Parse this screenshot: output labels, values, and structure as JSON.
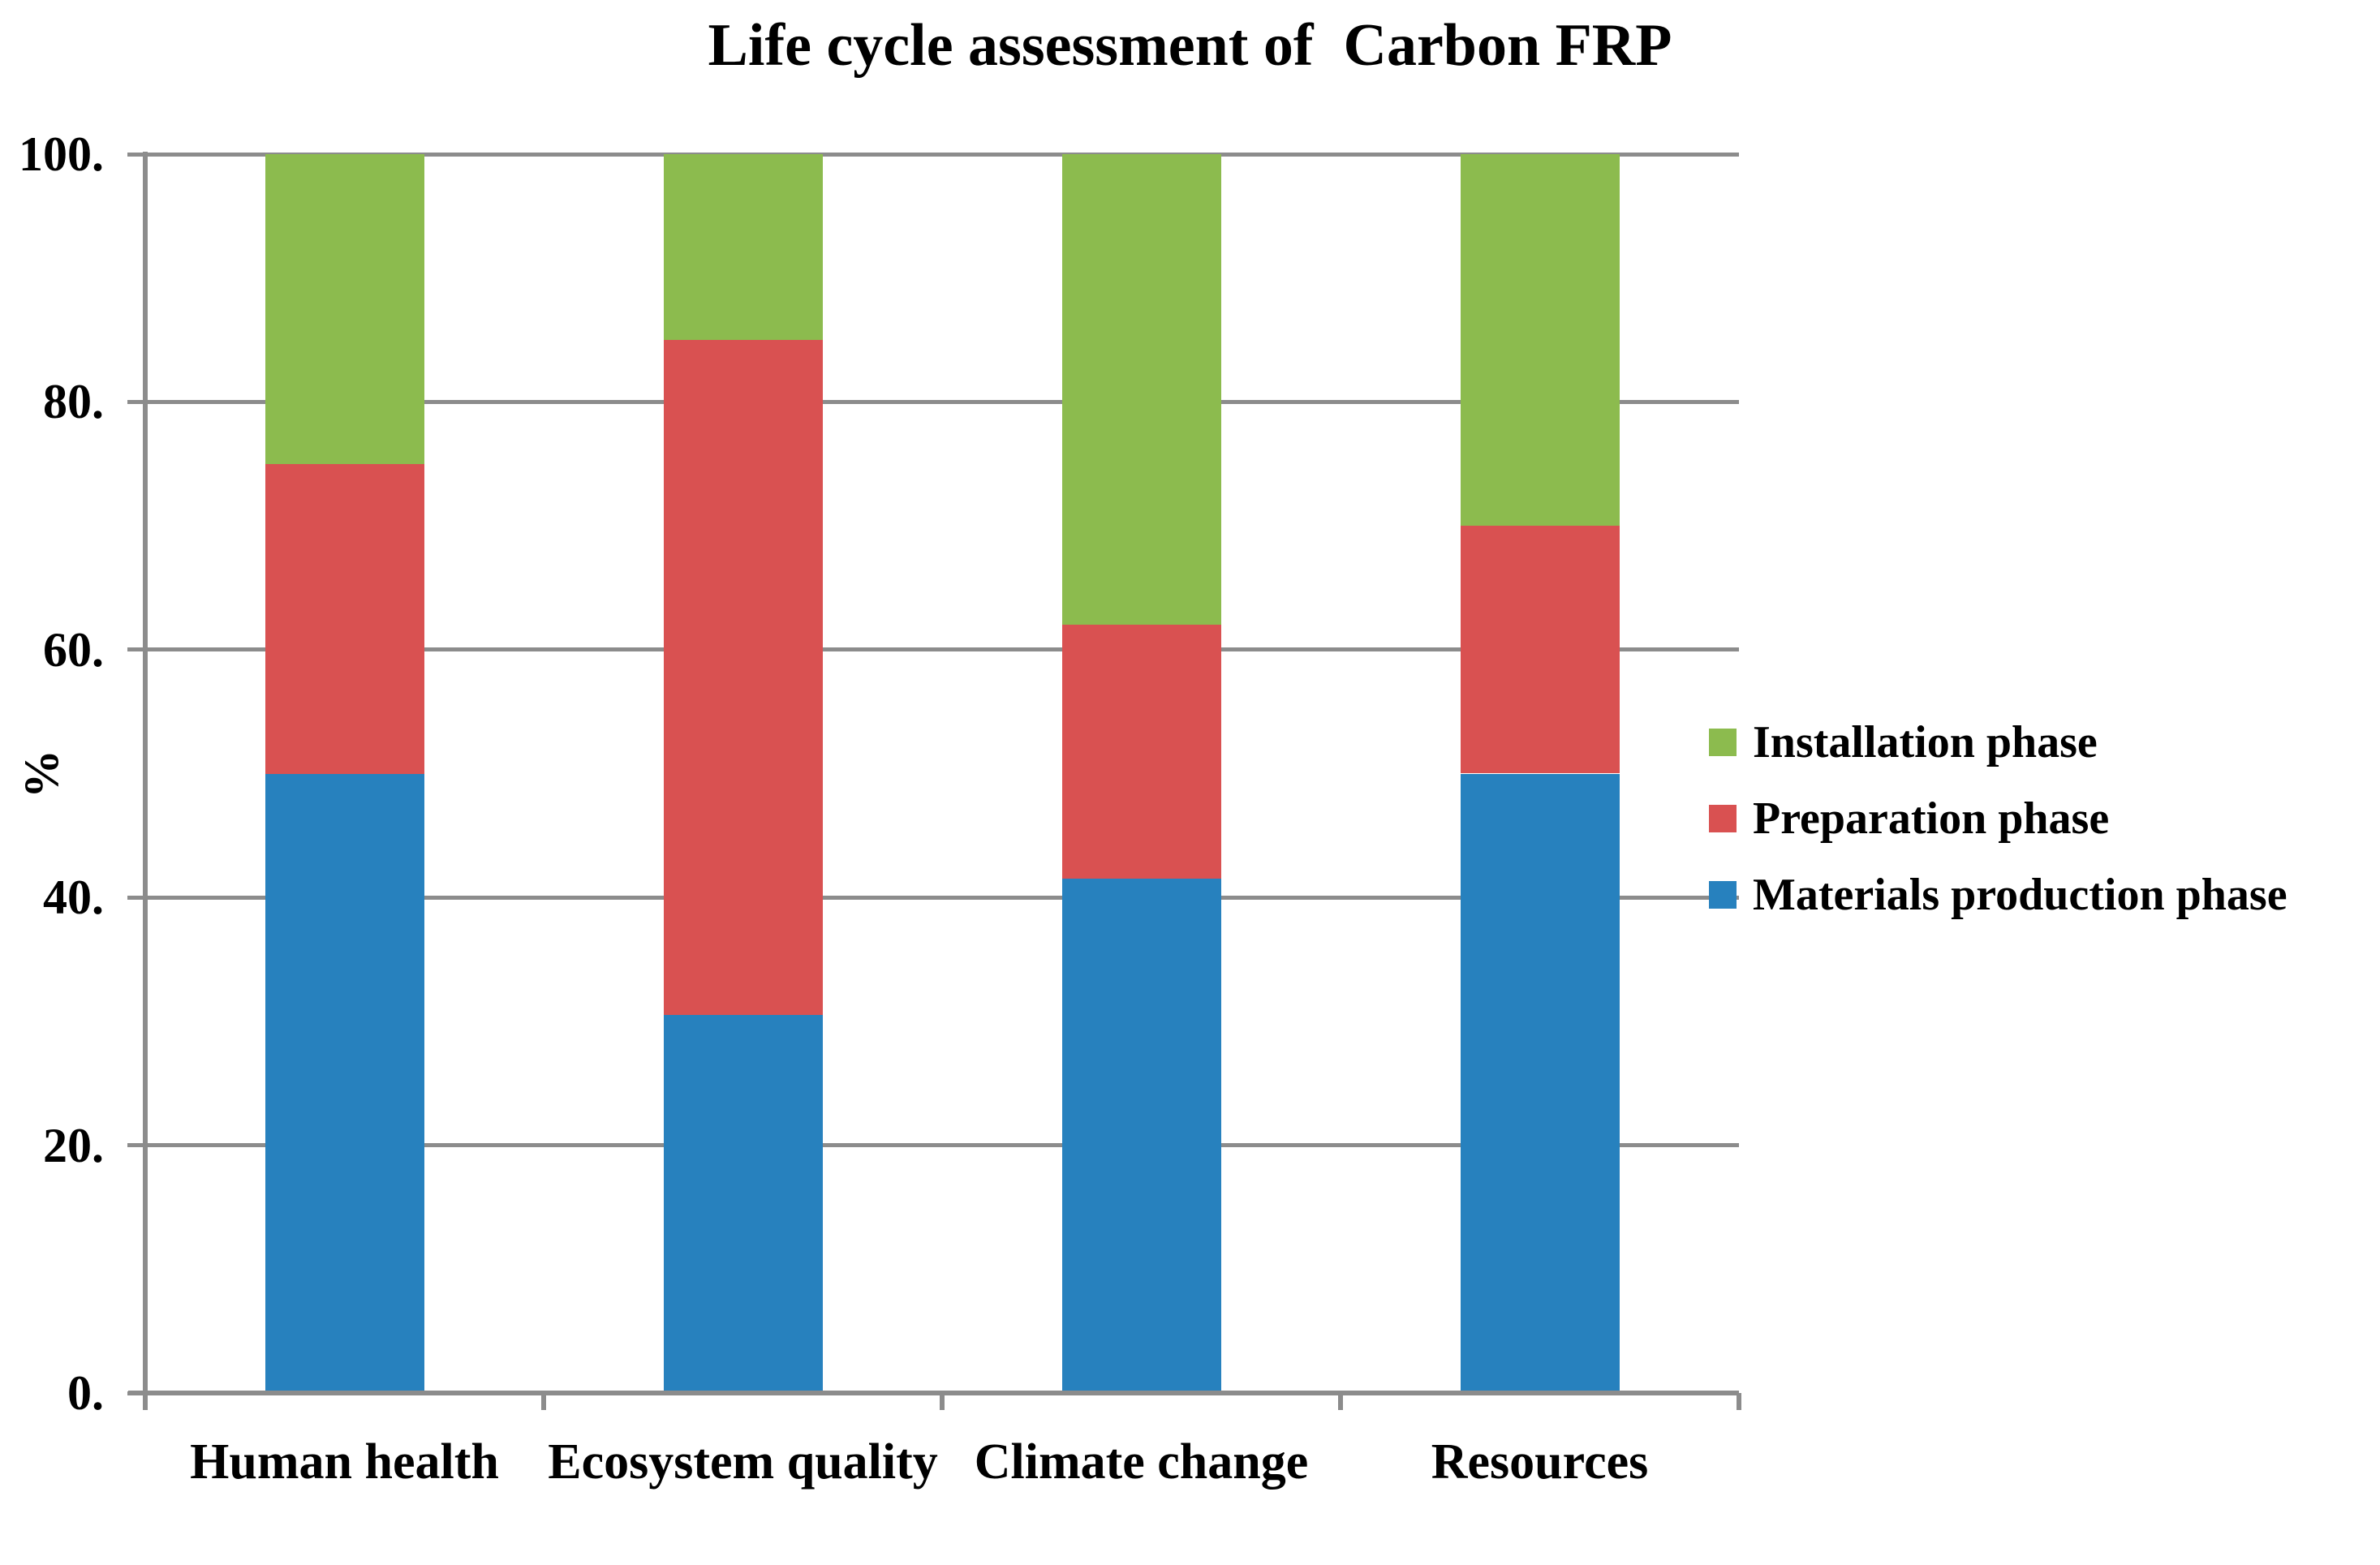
{
  "title": "Life cycle assessment of  Carbon FRP",
  "y_axis": {
    "label": "%",
    "tick_labels": [
      "0.",
      "20.",
      "40.",
      "60.",
      "80.",
      "100."
    ]
  },
  "legend": [
    {
      "label": "Installation phase",
      "color": "#8CBB4E"
    },
    {
      "label": "Preparation phase",
      "color": "#D95151"
    },
    {
      "label": "Materials production phase",
      "color": "#2781BE"
    }
  ],
  "chart_data": {
    "type": "bar",
    "stacked": true,
    "title": "Life cycle assessment of  Carbon FRP",
    "categories": [
      "Human health",
      "Ecosystem quality",
      "Climate change",
      "Resources"
    ],
    "series": [
      {
        "name": "Materials production phase",
        "color": "#2781BE",
        "values": [
          50,
          30.5,
          41.5,
          50
        ]
      },
      {
        "name": "Preparation phase",
        "color": "#D95151",
        "values": [
          25,
          54.5,
          20.5,
          20
        ]
      },
      {
        "name": "Installation phase",
        "color": "#8CBB4E",
        "values": [
          25,
          15,
          38,
          30
        ]
      }
    ],
    "xlabel": "",
    "ylabel": "%",
    "ylim": [
      0,
      100
    ],
    "y_ticks": [
      0,
      20,
      40,
      60,
      80,
      100
    ],
    "y_tick_labels": [
      "0.",
      "20.",
      "40.",
      "60.",
      "80.",
      "100."
    ],
    "grid": true,
    "legend_position": "right",
    "colors": {
      "grid": "#8C8C8C",
      "axis": "#8C8C8C",
      "text": "#000000",
      "background": "#FFFFFF"
    }
  }
}
